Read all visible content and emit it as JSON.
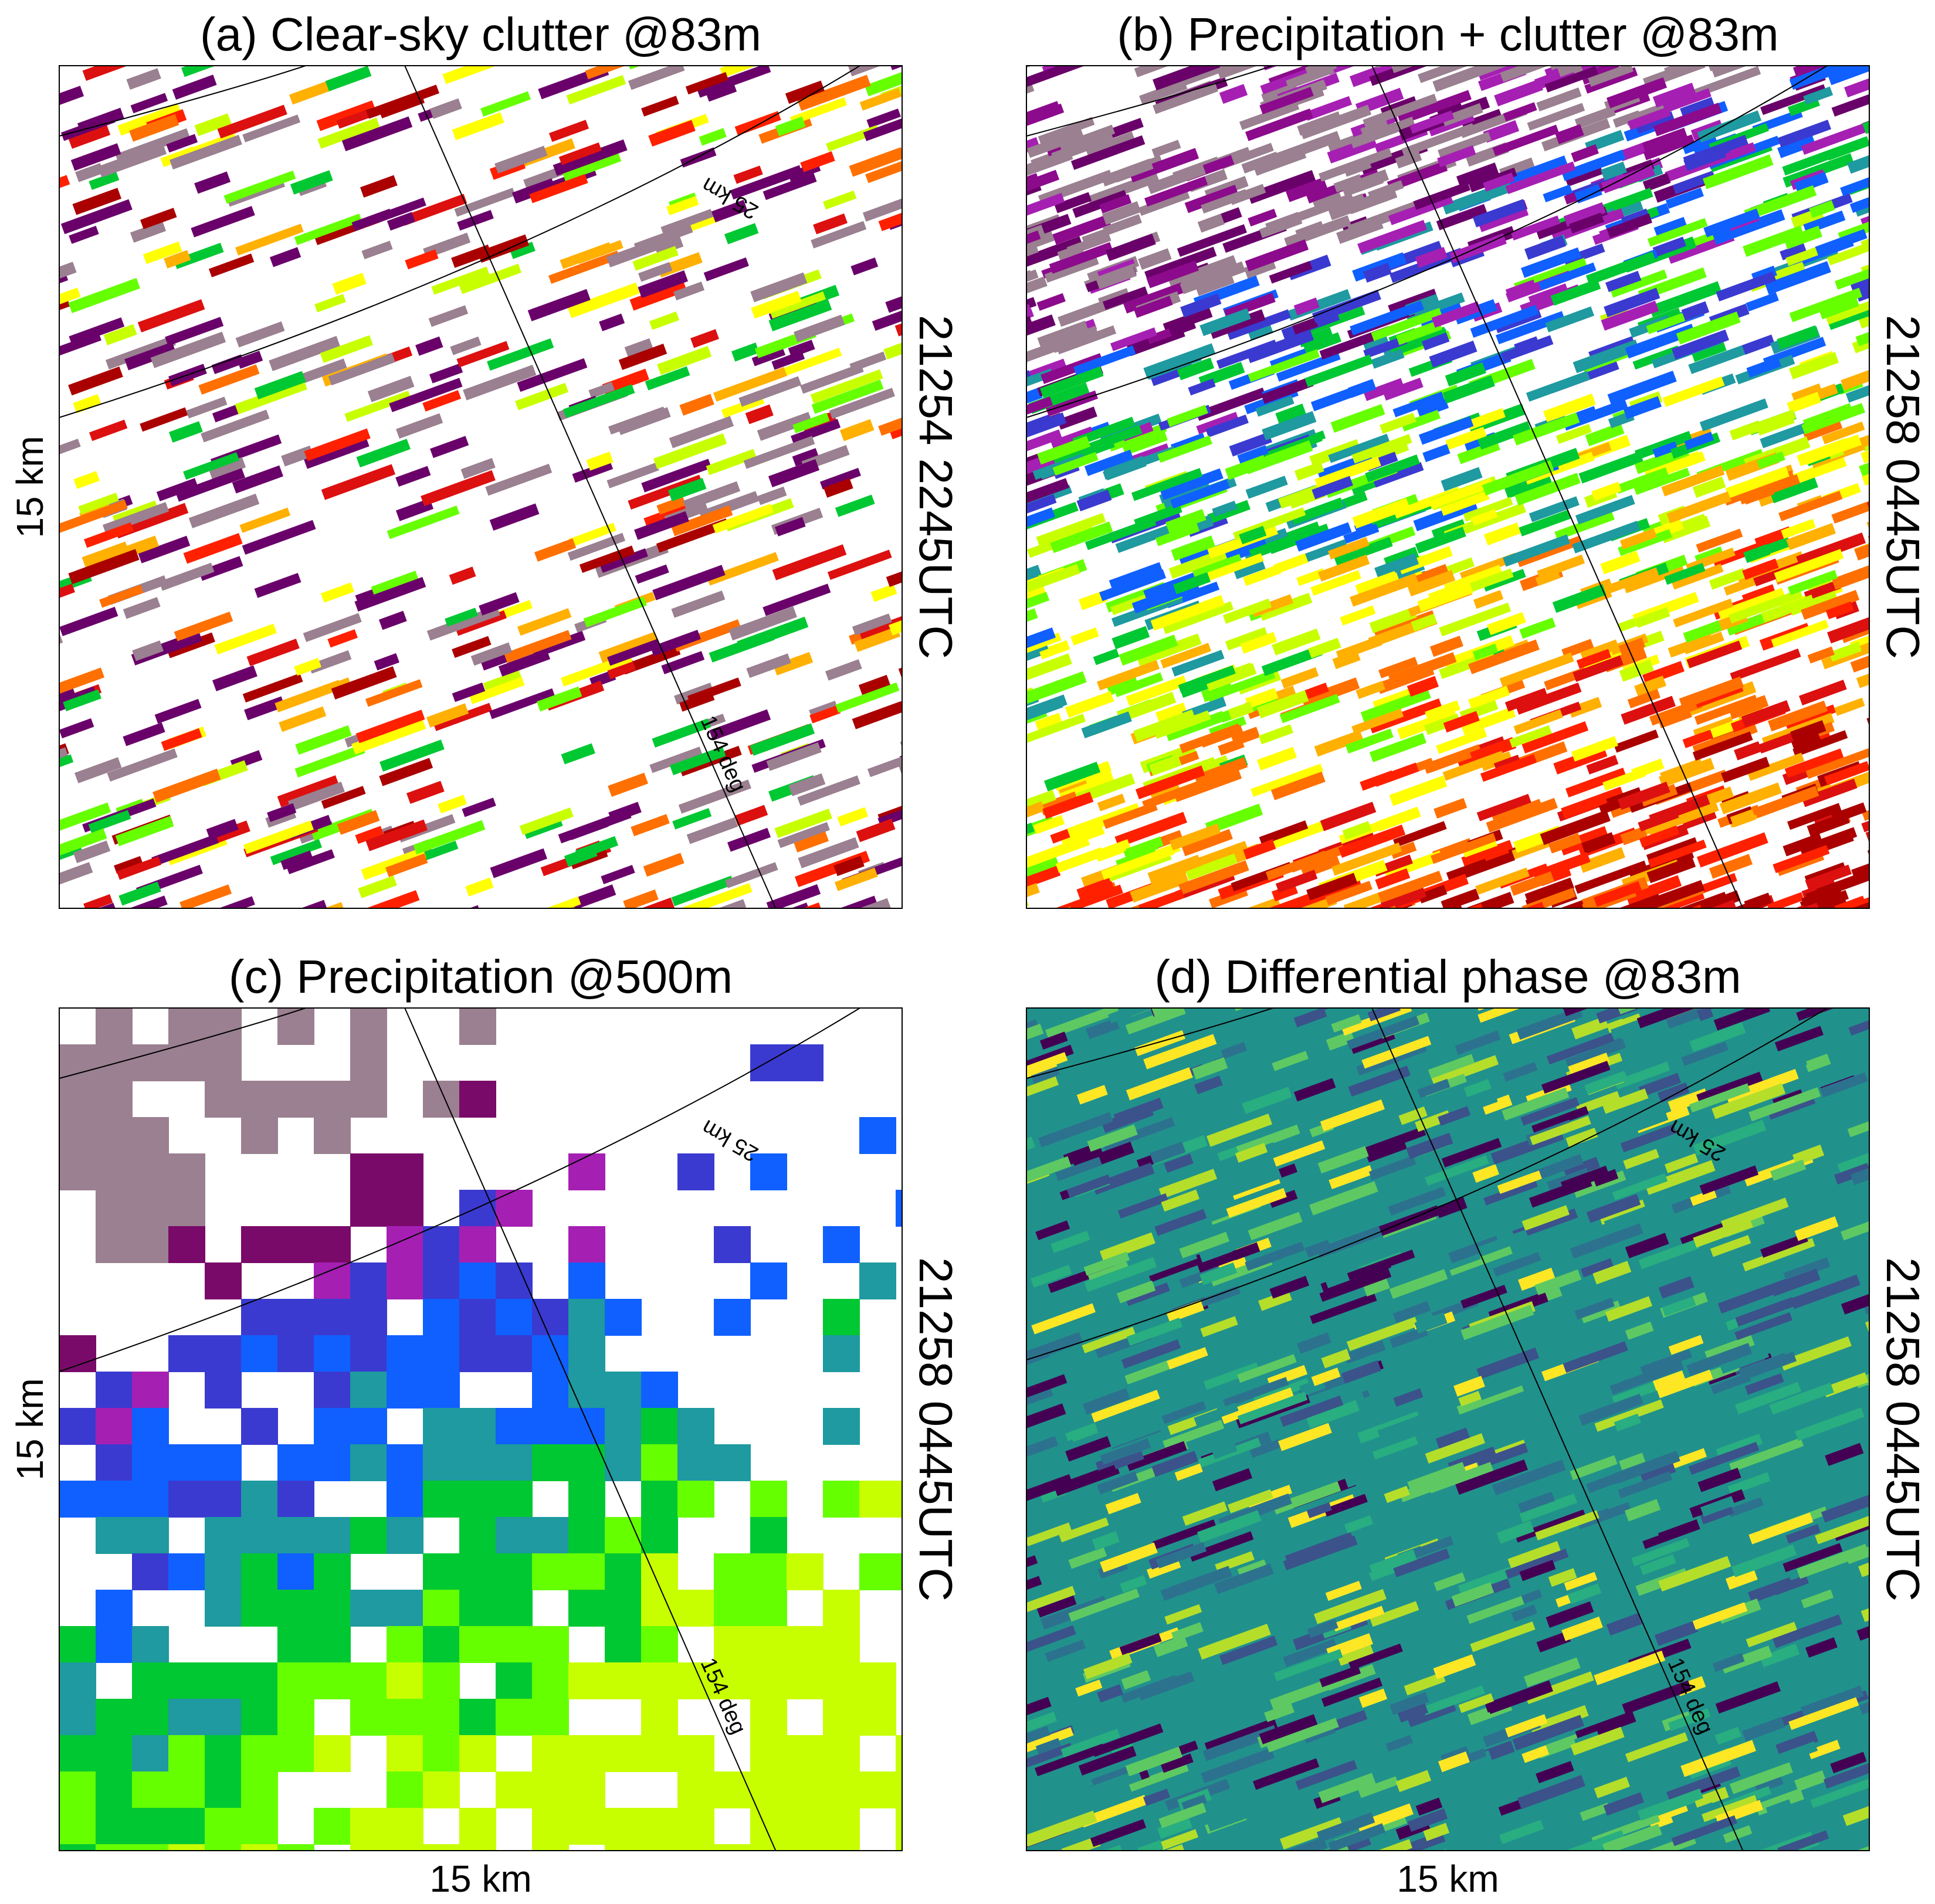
{
  "panels": [
    {
      "title": "(a) Clear-sky clutter @83m",
      "left_label": "15 km",
      "right_label": "21254 2245UTC",
      "range_label": "25 km",
      "azimuth_label": "154 deg"
    },
    {
      "title": "(b) Precipitation + clutter @83m",
      "right_label": "21258 0445UTC"
    },
    {
      "title": "(c) Precipitation @500m",
      "left_label": "15 km",
      "bottom_label": "15 km",
      "right_label": "21258 0445UTC",
      "range_label": "25 km",
      "azimuth_label": "154 deg"
    },
    {
      "title": "(d) Differential phase @83m",
      "bottom_label": "15 km",
      "right_label": "21258 0445UTC",
      "range_label": "25 km",
      "azimuth_label": "154 deg"
    }
  ]
}
